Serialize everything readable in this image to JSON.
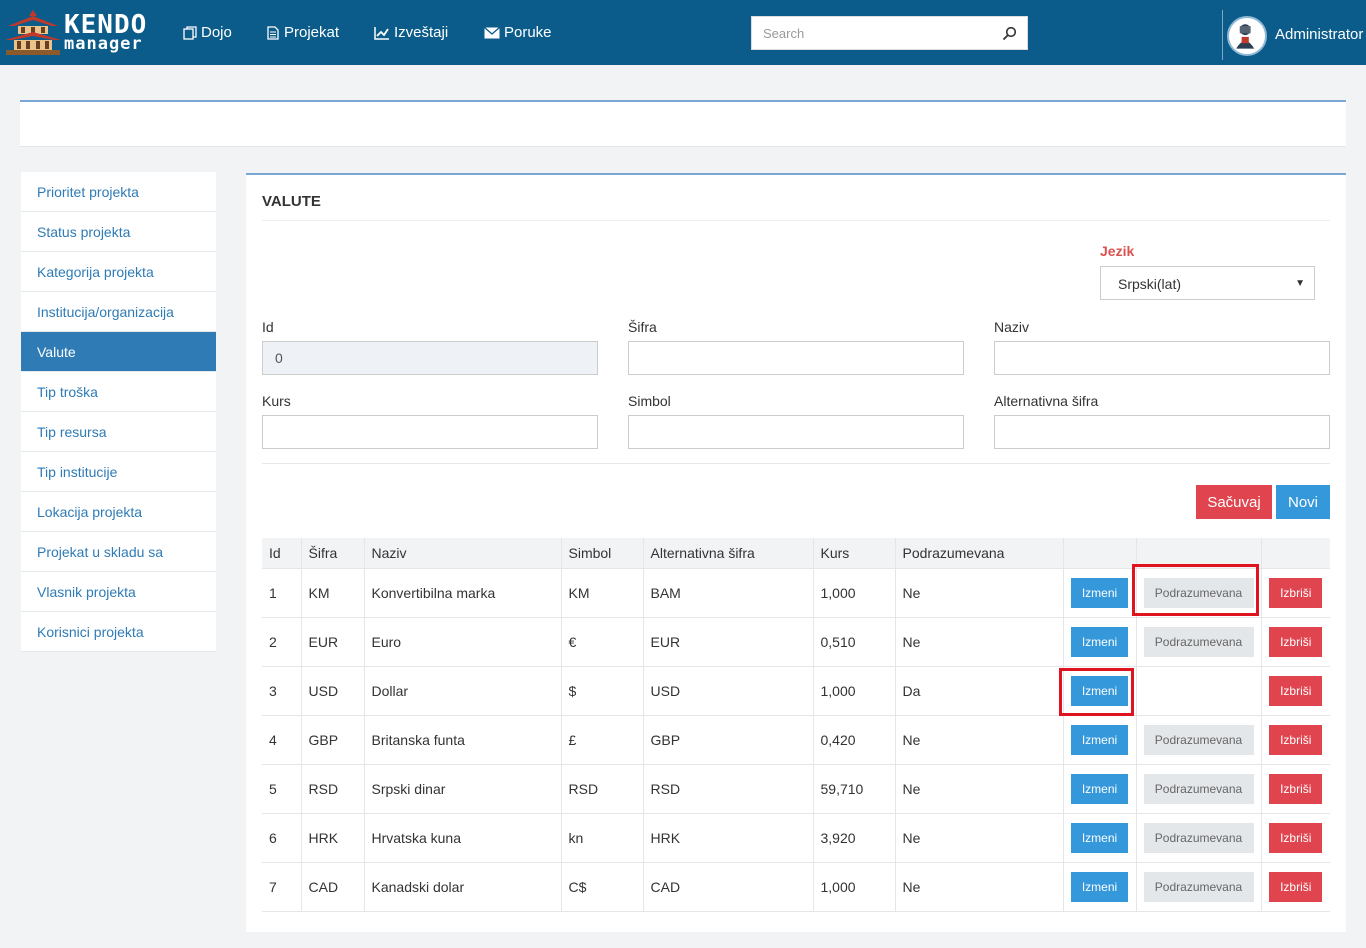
{
  "header": {
    "logo_line1": "KENDO",
    "logo_line2": "manager",
    "nav": [
      {
        "label": "Dojo",
        "icon": "copy-icon"
      },
      {
        "label": "Projekat",
        "icon": "document-icon"
      },
      {
        "label": "Izveštaji",
        "icon": "line-chart-icon"
      },
      {
        "label": "Poruke",
        "icon": "envelope-icon"
      }
    ],
    "search_placeholder": "Search",
    "user": "Administrator"
  },
  "sidebar": {
    "items": [
      {
        "label": "Prioritet projekta"
      },
      {
        "label": "Status projekta"
      },
      {
        "label": "Kategorija projekta"
      },
      {
        "label": "Institucija/organizacija"
      },
      {
        "label": "Valute",
        "active": true
      },
      {
        "label": "Tip troška"
      },
      {
        "label": "Tip resursa"
      },
      {
        "label": "Tip institucije"
      },
      {
        "label": "Lokacija projekta"
      },
      {
        "label": "Projekat u skladu sa"
      },
      {
        "label": "Vlasnik projekta"
      },
      {
        "label": "Korisnici projekta"
      }
    ]
  },
  "panel": {
    "title": "VALUTE",
    "language": {
      "label": "Jezik",
      "value": "Srpski(lat)"
    },
    "form": {
      "id": {
        "label": "Id",
        "value": "0"
      },
      "sifra": {
        "label": "Šifra",
        "value": ""
      },
      "naziv": {
        "label": "Naziv",
        "value": ""
      },
      "kurs": {
        "label": "Kurs",
        "value": ""
      },
      "simbol": {
        "label": "Simbol",
        "value": ""
      },
      "alt_sifra": {
        "label": "Alternativna šifra",
        "value": ""
      }
    },
    "buttons": {
      "save": "Sačuvaj",
      "new": "Novi"
    }
  },
  "table": {
    "headers": [
      "Id",
      "Šifra",
      "Naziv",
      "Simbol",
      "Alternativna šifra",
      "Kurs",
      "Podrazumevana",
      "",
      "",
      ""
    ],
    "row_actions": {
      "edit": "Izmeni",
      "default": "Podrazumevana",
      "delete": "Izbriši"
    },
    "rows": [
      {
        "id": "1",
        "sifra": "KM",
        "naziv": "Konvertibilna marka",
        "simbol": "KM",
        "alt": "BAM",
        "kurs": "1,000",
        "podr": "Ne",
        "show_default": true
      },
      {
        "id": "2",
        "sifra": "EUR",
        "naziv": "Euro",
        "simbol": "€",
        "alt": "EUR",
        "kurs": "0,510",
        "podr": "Ne",
        "show_default": true
      },
      {
        "id": "3",
        "sifra": "USD",
        "naziv": "Dollar",
        "simbol": "$",
        "alt": "USD",
        "kurs": "1,000",
        "podr": "Da",
        "show_default": false
      },
      {
        "id": "4",
        "sifra": "GBP",
        "naziv": "Britanska funta",
        "simbol": "£",
        "alt": "GBP",
        "kurs": "0,420",
        "podr": "Ne",
        "show_default": true
      },
      {
        "id": "5",
        "sifra": "RSD",
        "naziv": "Srpski dinar",
        "simbol": "RSD",
        "alt": "RSD",
        "kurs": "59,710",
        "podr": "Ne",
        "show_default": true
      },
      {
        "id": "6",
        "sifra": "HRK",
        "naziv": "Hrvatska kuna",
        "simbol": "kn",
        "alt": "HRK",
        "kurs": "3,920",
        "podr": "Ne",
        "show_default": true
      },
      {
        "id": "7",
        "sifra": "CAD",
        "naziv": "Kanadski dolar",
        "simbol": "C$",
        "alt": "CAD",
        "kurs": "1,000",
        "podr": "Ne",
        "show_default": true
      }
    ]
  },
  "colors": {
    "header_bg": "#0b5c8a",
    "accent": "#2e7bb6",
    "danger": "#e0454f",
    "primary": "#3498db",
    "highlight": "#e0141e"
  }
}
